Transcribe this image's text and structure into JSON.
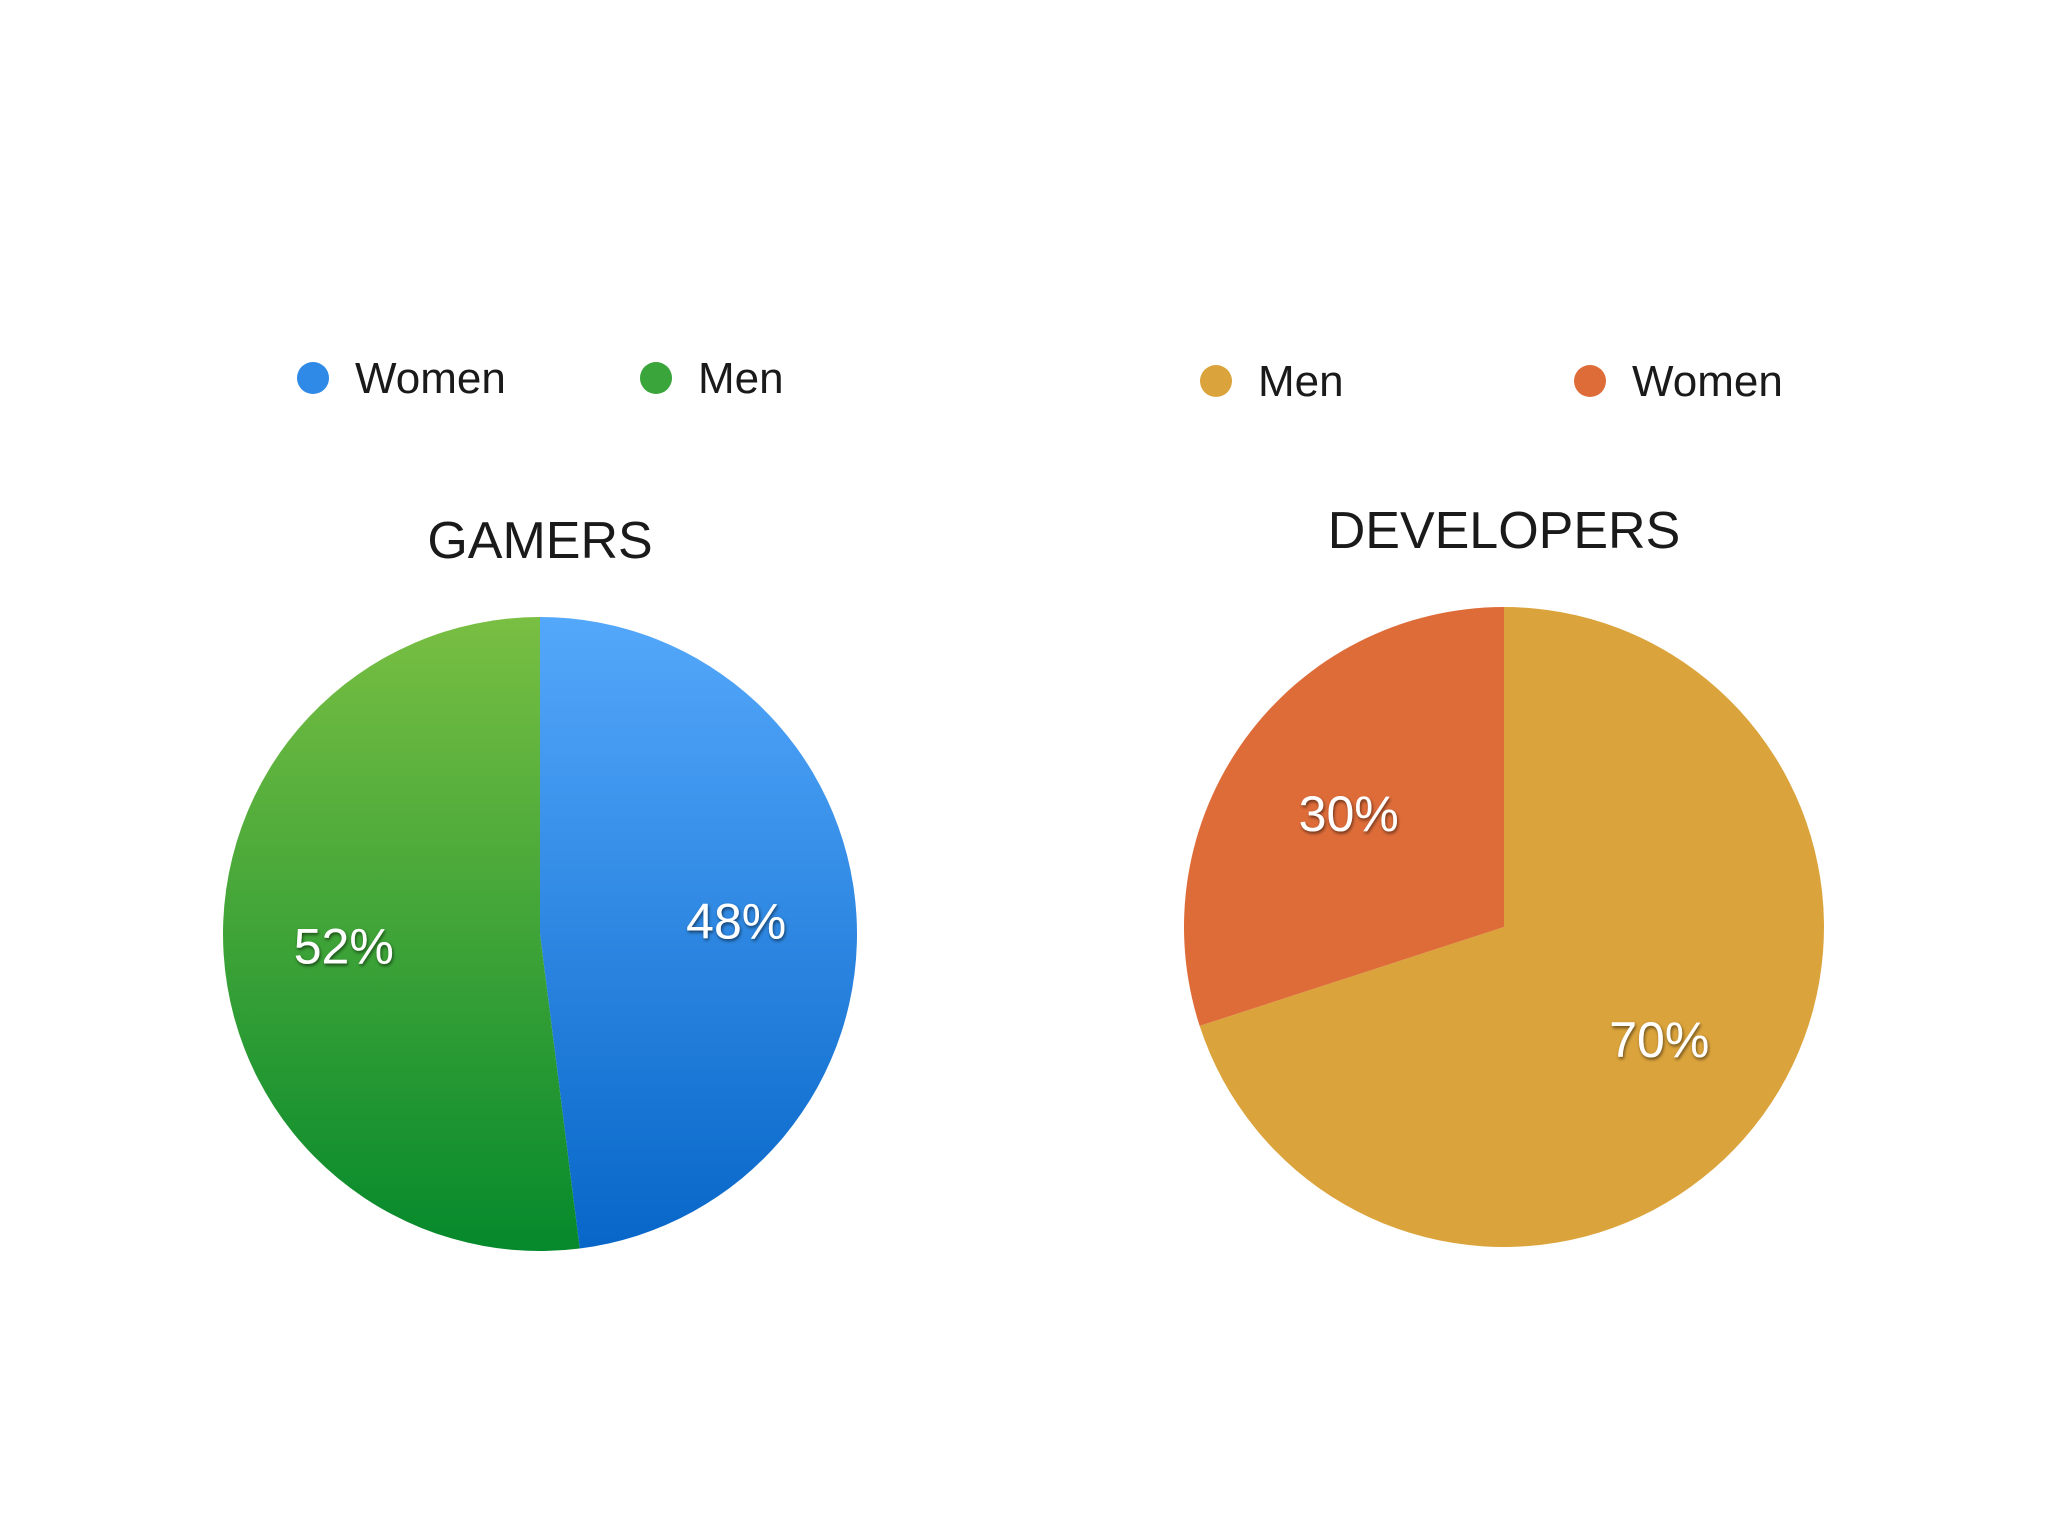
{
  "chart_data": [
    {
      "type": "pie",
      "title": "GAMERS",
      "start_angle_deg": 0,
      "legend_position": "top",
      "slices": [
        {
          "name": "Women",
          "value": 48,
          "label": "48%",
          "color": "#2f89e6"
        },
        {
          "name": "Men",
          "value": 52,
          "label": "52%",
          "color": "#3aa53a"
        }
      ]
    },
    {
      "type": "pie",
      "title": "DEVELOPERS",
      "start_angle_deg": 0,
      "legend_position": "top",
      "slices": [
        {
          "name": "Men",
          "value": 70,
          "label": "70%",
          "color": "#dba33b"
        },
        {
          "name": "Women",
          "value": 30,
          "label": "30%",
          "color": "#de6c39"
        }
      ]
    }
  ]
}
